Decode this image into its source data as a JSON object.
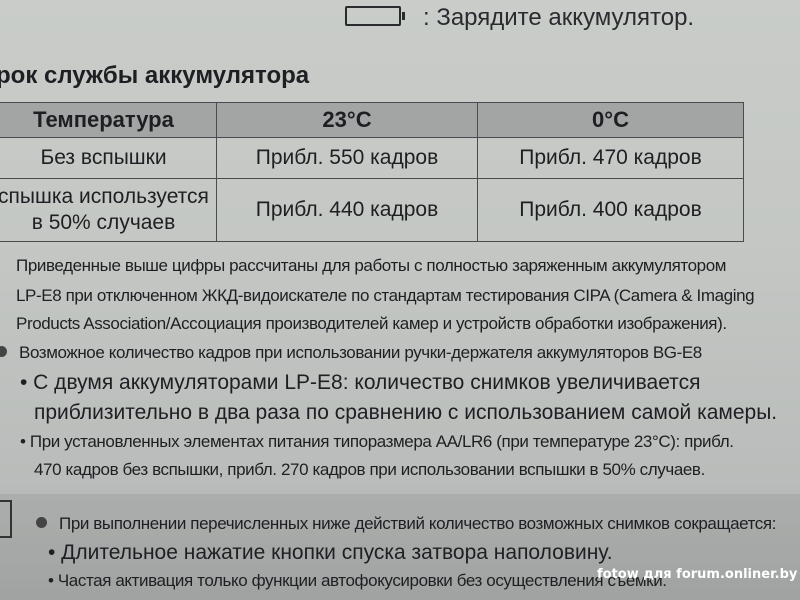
{
  "charge_line": {
    "icon": "battery-empty-icon",
    "text": ": Зарядите аккумулятор."
  },
  "section_title": "рок службы аккумулятора",
  "table": {
    "headers": [
      "Температура",
      "23°C",
      "0°C"
    ],
    "rows": [
      {
        "label": [
          "Без вспышки"
        ],
        "c23": "Прибл. 550 кадров",
        "c0": "Прибл. 470 кадров"
      },
      {
        "label": [
          "спышка используется",
          "в 50% случаев"
        ],
        "c23": "Прибл. 440 кадров",
        "c0": "Прибл. 400 кадров"
      }
    ]
  },
  "notes": [
    "Приведенные выше цифры рассчитаны для работы с полностью заряженным аккумулятором",
    "LP-E8 при отключенном ЖКД-видоискателе по стандартам тестирования CIPA (Camera & Imaging",
    "Products Association/Ассоциация производителей камер и устройств обработки изображения).",
    "Возможное количество кадров при использовании ручки-держателя аккумуляторов BG-E8",
    "• С двумя аккумуляторами LP-E8: количество снимков увеличивается",
    "приблизительно в два раза по сравнению с использованием самой камеры.",
    "• При установленных элементах питания типоразмера AA/LR6 (при температуре 23°C): прибл.",
    "470 кадров без вспышки, прибл. 270 кадров при использовании вспышки в 50% случаев."
  ],
  "memo": {
    "icon": "memo-pencil-icon",
    "lead": "При выполнении перечисленных ниже действий количество возможных снимков сокращается:",
    "items": [
      "• Длительное нажатие кнопки спуска затвора наполовину.",
      "• Частая активация только функции автофокусировки без осуществления съемки."
    ]
  },
  "watermark": "fotow для forum.onliner.by"
}
